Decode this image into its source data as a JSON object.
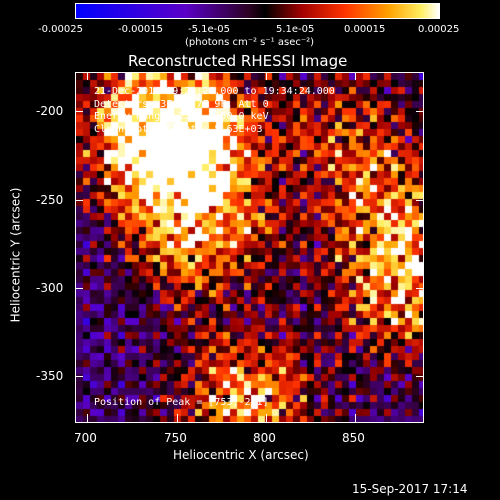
{
  "colorbar": {
    "ticks": [
      "-0.00025",
      "-0.00015",
      "-5.1e-05",
      "5.1e-05",
      "0.00015",
      "0.00025"
    ],
    "units": "(photons cm⁻² s⁻¹ asec⁻²)"
  },
  "plot": {
    "title": "Reconstructed RHESSI Image",
    "info_lines": [
      "21-Dec-2014 19:24:24.000 to 19:34:24.000",
      "Detectors: 3F 6F 7F 9F, Att 0",
      "Energy Range: 25.0 - 50.0 keV",
      "Clean    Total Counts: 5.63E+03"
    ],
    "peak_text": "Position of Peak = [753,-211]",
    "xlabel": "Heliocentric X (arcsec)",
    "ylabel": "Heliocentric Y (arcsec)",
    "xticks": [
      "700",
      "750",
      "800",
      "850"
    ],
    "yticks": [
      "-200",
      "-250",
      "-300",
      "-350"
    ]
  },
  "footer": {
    "timestamp": "15-Sep-2017 17:14"
  },
  "chart_data": {
    "type": "heatmap",
    "title": "Reconstructed RHESSI Image",
    "xlabel": "Heliocentric X (arcsec)",
    "ylabel": "Heliocentric Y (arcsec)",
    "xlim": [
      695,
      890
    ],
    "ylim": [
      -372,
      -173
    ],
    "clim": [
      -0.00025,
      0.00025
    ],
    "colorbar_ticks": [
      -0.00025,
      -0.00015,
      -5.1e-05,
      5.1e-05,
      0.00015,
      0.00025
    ],
    "peak": [
      753,
      -211
    ],
    "hotspots": [
      {
        "x": 753,
        "y": -211,
        "strength": 1.0
      },
      {
        "x": 740,
        "y": -205,
        "strength": 0.8
      },
      {
        "x": 765,
        "y": -265,
        "strength": 0.75
      },
      {
        "x": 790,
        "y": -360,
        "strength": 0.8
      },
      {
        "x": 870,
        "y": -255,
        "strength": 0.6
      },
      {
        "x": 880,
        "y": -300,
        "strength": 0.65
      },
      {
        "x": 845,
        "y": -205,
        "strength": 0.45
      }
    ]
  }
}
